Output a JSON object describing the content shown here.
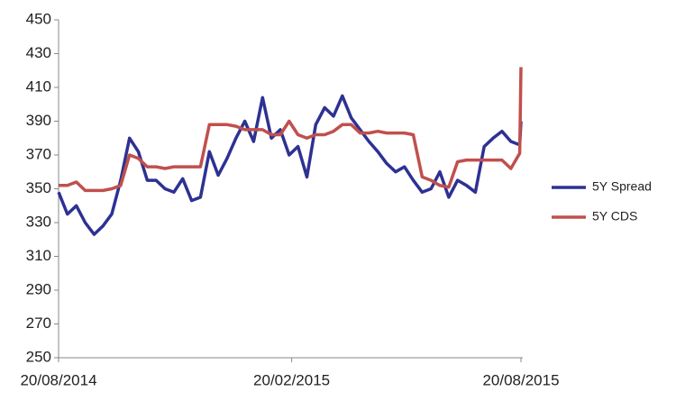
{
  "chart_data": {
    "type": "line",
    "x": [
      "20/08/2014",
      "27/08/2014",
      "03/09/2014",
      "10/09/2014",
      "17/09/2014",
      "24/09/2014",
      "01/10/2014",
      "08/10/2014",
      "15/10/2014",
      "22/10/2014",
      "29/10/2014",
      "05/11/2014",
      "12/11/2014",
      "19/11/2014",
      "26/11/2014",
      "03/12/2014",
      "10/12/2014",
      "17/12/2014",
      "24/12/2014",
      "31/12/2014",
      "07/01/2015",
      "14/01/2015",
      "21/01/2015",
      "28/01/2015",
      "04/02/2015",
      "11/02/2015",
      "18/02/2015",
      "25/02/2015",
      "04/03/2015",
      "11/03/2015",
      "18/03/2015",
      "25/03/2015",
      "01/04/2015",
      "08/04/2015",
      "15/04/2015",
      "22/04/2015",
      "29/04/2015",
      "06/05/2015",
      "13/05/2015",
      "20/05/2015",
      "27/05/2015",
      "03/06/2015",
      "10/06/2015",
      "17/06/2015",
      "24/06/2015",
      "01/07/2015",
      "08/07/2015",
      "15/07/2015",
      "22/07/2015",
      "29/07/2015",
      "05/08/2015",
      "12/08/2015",
      "19/08/2015",
      "20/08/2015"
    ],
    "series": [
      {
        "name": "5Y Spread",
        "color": "#2e3192",
        "values": [
          348,
          335,
          340,
          330,
          323,
          328,
          335,
          355,
          380,
          372,
          355,
          355,
          350,
          348,
          356,
          343,
          345,
          372,
          358,
          368,
          380,
          390,
          378,
          404,
          380,
          385,
          370,
          375,
          357,
          388,
          398,
          393,
          405,
          392,
          385,
          378,
          372,
          365,
          360,
          363,
          355,
          348,
          350,
          360,
          345,
          355,
          352,
          348,
          375,
          380,
          384,
          378,
          376,
          390
        ]
      },
      {
        "name": "5Y CDS",
        "color": "#c0504d",
        "values": [
          352,
          352,
          354,
          349,
          349,
          349,
          350,
          352,
          370,
          368,
          363,
          363,
          362,
          363,
          363,
          363,
          363,
          388,
          388,
          388,
          387,
          385,
          385,
          385,
          382,
          382,
          390,
          382,
          380,
          382,
          382,
          384,
          388,
          388,
          383,
          383,
          384,
          383,
          383,
          383,
          382,
          357,
          355,
          352,
          351,
          366,
          367,
          367,
          367,
          367,
          367,
          362,
          371,
          422
        ]
      }
    ],
    "xlim": [
      "20/08/2014",
      "20/08/2015"
    ],
    "xticks": [
      "20/08/2014",
      "20/02/2015",
      "20/08/2015"
    ],
    "ylim": [
      250,
      450
    ],
    "yticks": [
      250,
      270,
      290,
      310,
      330,
      350,
      370,
      390,
      410,
      430,
      450
    ],
    "legend": "right"
  }
}
